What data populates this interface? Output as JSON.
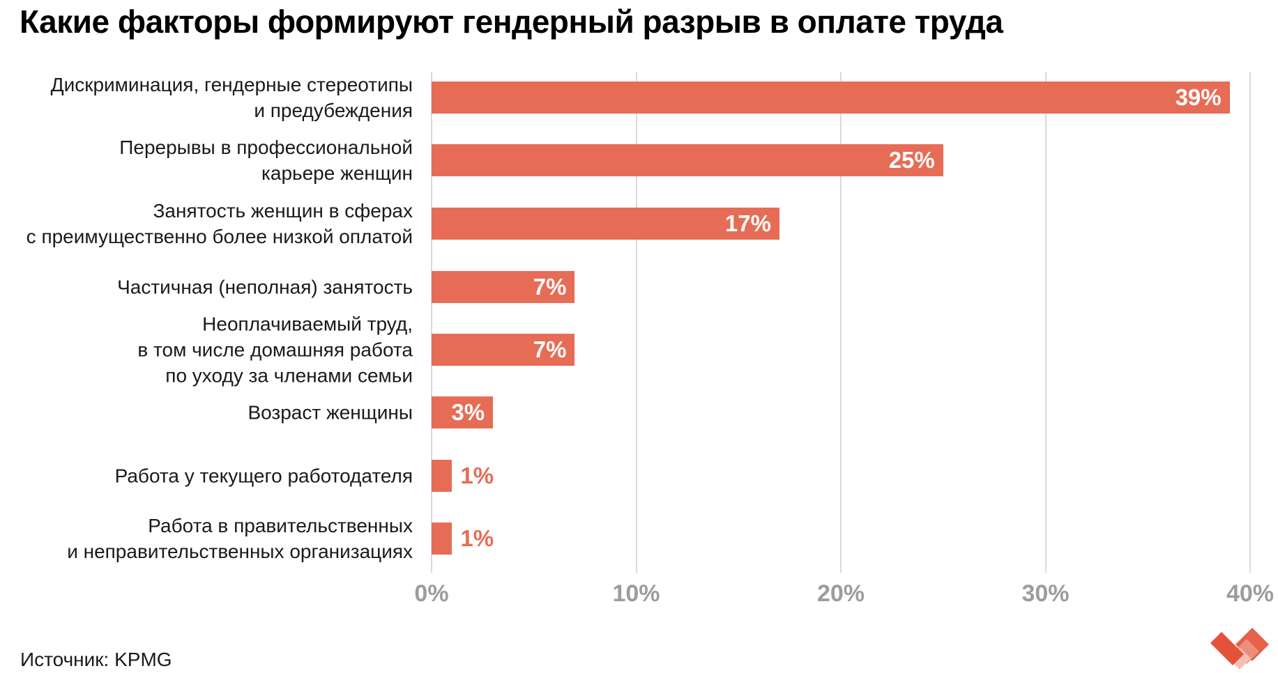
{
  "title": "Какие факторы формируют гендерный разрыв в оплате труда",
  "source": "Источник: KPMG",
  "logo": {
    "name": "diamond-heart-logo",
    "colors": [
      "#e6604a",
      "#ec8e7b",
      "#f3c0b4",
      "#e4523a"
    ]
  },
  "colors": {
    "bar": "#e76c55",
    "value_inside": "#ffffff",
    "value_outside": "#e76c55",
    "category_label": "#1a1a1a",
    "axis_label": "#9b9c9e",
    "gridline": "#d9d9d9",
    "title": "#000000",
    "background": "#ffffff"
  },
  "chart_data": {
    "type": "bar",
    "orientation": "horizontal",
    "title": "Какие факторы формируют гендерный разрыв в оплате труда",
    "categories": [
      "Дискриминация, гендерные стереотипы\nи предубеждения",
      "Перерывы в профессиональной\nкарьере женщин",
      "Занятость женщин в сферах\nс преимущественно более низкой оплатой",
      "Частичная (неполная) занятость",
      "Неоплачиваемый труд,\nв том числе домашняя работа\nпо уходу за членами семьи",
      "Возраст женщины",
      "Работа у текущего работодателя",
      "Работа в правительственных\nи неправительственных организациях"
    ],
    "values": [
      39,
      25,
      17,
      7,
      7,
      3,
      1,
      1
    ],
    "value_labels": [
      "39%",
      "25%",
      "17%",
      "7%",
      "7%",
      "3%",
      "1%",
      "1%"
    ],
    "value_label_placement": [
      "inside",
      "inside",
      "inside",
      "inside",
      "inside",
      "inside",
      "outside",
      "outside"
    ],
    "xlabel": "",
    "ylabel": "",
    "xlim": [
      0,
      40
    ],
    "x_ticks": [
      0,
      10,
      20,
      30,
      40
    ],
    "x_tick_labels": [
      "0%",
      "10%",
      "20%",
      "30%",
      "40%"
    ],
    "grid": true,
    "legend": false,
    "source": "Источник: KPMG"
  }
}
